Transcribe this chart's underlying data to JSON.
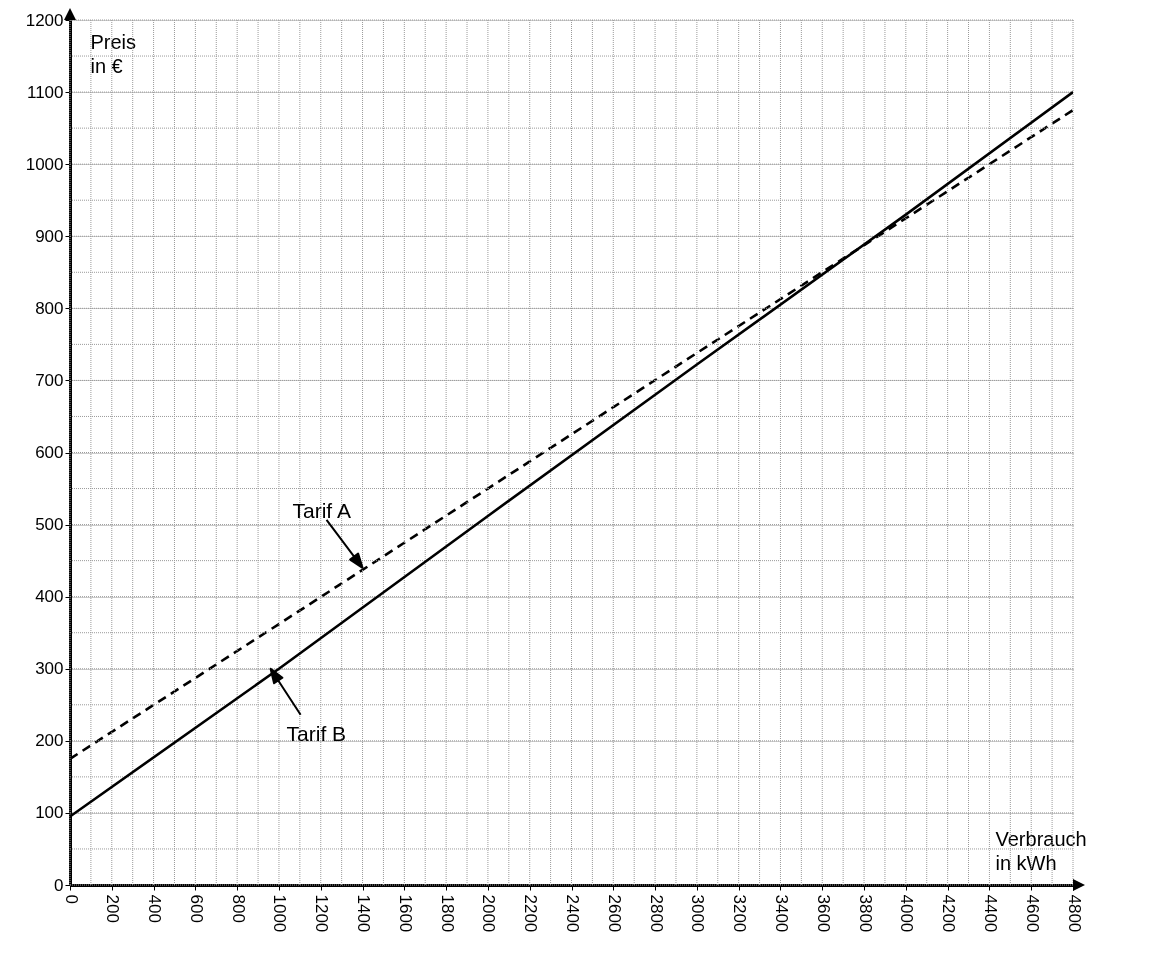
{
  "chart_data": {
    "type": "line",
    "xlabel": "Verbrauch in kWh",
    "ylabel": "Preis in €",
    "x": [
      0,
      1000,
      2000,
      3000,
      4000,
      4800
    ],
    "series": [
      {
        "color": "#000000",
        "line_style": "dashed",
        "values": [
          175,
          362,
          550,
          738,
          925,
          1075
        ]
      },
      {
        "color": "#000000",
        "line_style": "solid",
        "values": [
          95,
          300,
          512,
          722,
          930,
          1100
        ]
      }
    ],
    "xlim": [
      0,
      4800
    ],
    "ylim": [
      0,
      1200
    ],
    "xticks": [
      0,
      {
        "value": 100,
        "label": null
      },
      200,
      {
        "value": 300,
        "label": null
      },
      400,
      {
        "value": 500,
        "label": null
      },
      600,
      {
        "value": 700,
        "label": null
      },
      800,
      {
        "value": 900,
        "label": null
      },
      1000,
      {
        "value": 1100,
        "label": null
      },
      1200,
      {
        "value": 1300,
        "label": null
      },
      1400,
      {
        "value": 1500,
        "label": null
      },
      1600,
      {
        "value": 1700,
        "label": null
      },
      1800,
      {
        "value": 1900,
        "label": null
      },
      2000,
      {
        "value": 2100,
        "label": null
      },
      2200,
      {
        "value": 2300,
        "label": null
      },
      2400,
      {
        "value": 2500,
        "label": null
      },
      2600,
      {
        "value": 2700,
        "label": null
      },
      2800,
      {
        "value": 2900,
        "label": null
      },
      3000,
      {
        "value": 3100,
        "label": null
      },
      3200,
      {
        "value": 3300,
        "label": null
      },
      3400,
      {
        "value": 3500,
        "label": null
      },
      3600,
      {
        "value": 3700,
        "label": null
      },
      3800,
      {
        "value": 3900,
        "label": null
      },
      4000,
      {
        "value": 4100,
        "label": null
      },
      4200,
      {
        "value": 4300,
        "label": null
      },
      4400,
      {
        "value": 4500,
        "label": null
      },
      4600,
      {
        "value": 4700,
        "label": null
      },
      4800
    ],
    "yticks": [
      0,
      {
        "value": 50,
        "label": null
      },
      100,
      {
        "value": 150,
        "label": null
      },
      200,
      {
        "value": 250,
        "label": null
      },
      300,
      {
        "value": 350,
        "label": null
      },
      400,
      {
        "value": 450,
        "label": null
      },
      500,
      {
        "value": 550,
        "label": null
      },
      600,
      {
        "value": 650,
        "label": null
      },
      700,
      {
        "value": 750,
        "label": null
      },
      800,
      {
        "value": 850,
        "label": null
      },
      900,
      {
        "value": 950,
        "label": null
      },
      1000,
      {
        "value": 1050,
        "label": null
      },
      1100,
      {
        "value": 1150,
        "label": null
      },
      1200
    ],
    "grid": true,
    "marker": "none",
    "annotations": [
      {
        "text": "Tarif A",
        "x": 1400,
        "y": 440
      },
      {
        "text": "Tarif B",
        "x": 960,
        "y": 300
      }
    ]
  }
}
